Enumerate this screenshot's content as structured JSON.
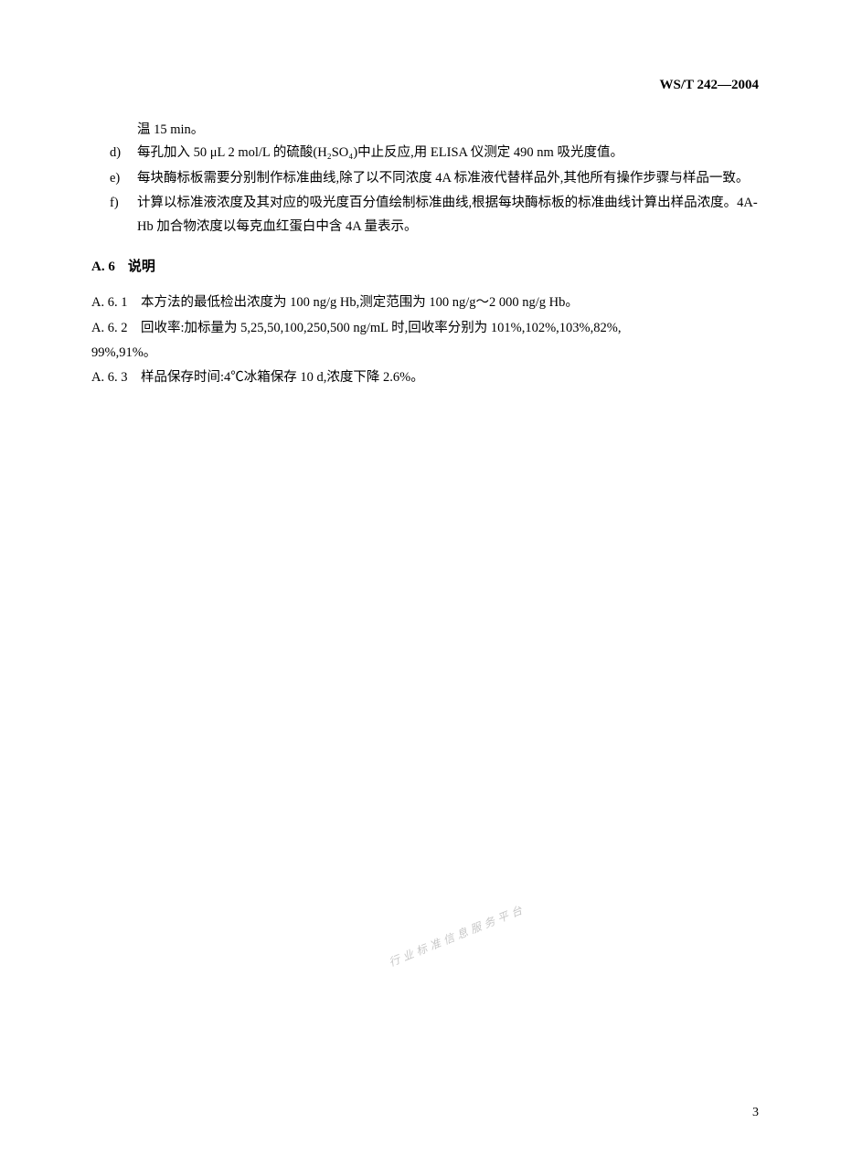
{
  "header": {
    "doc_code": "WS/T 242—2004"
  },
  "list_c_continue": "温 15 min。",
  "list": [
    {
      "marker": "d)",
      "text": "每孔加入 50 μL 2 mol/L 的硫酸(H₂SO₄)中止反应,用 ELISA 仪测定 490 nm 吸光度值。"
    },
    {
      "marker": "e)",
      "text": "每块酶标板需要分别制作标准曲线,除了以不同浓度 4A 标准液代替样品外,其他所有操作步骤与样品一致。"
    },
    {
      "marker": "f)",
      "text": "计算以标准液浓度及其对应的吸光度百分值绘制标准曲线,根据每块酶标板的标准曲线计算出样品浓度。4A-Hb 加合物浓度以每克血红蛋白中含 4A 量表示。"
    }
  ],
  "section_a6": {
    "num": "A. 6",
    "title": "说明"
  },
  "a6_1": "A. 6. 1　本方法的最低检出浓度为 100 ng/g Hb,测定范围为 100 ng/g～2 000 ng/g Hb。",
  "a6_2_line1": "A. 6. 2　回收率:加标量为 5,25,50,100,250,500 ng/mL 时,回收率分别为 101%,102%,103%,82%,",
  "a6_2_line2": "99%,91%。",
  "a6_3": "A. 6. 3　样品保存时间:4℃冰箱保存 10 d,浓度下降 2.6%。",
  "watermark": "行业标准信息服务平台",
  "page_number": "3"
}
